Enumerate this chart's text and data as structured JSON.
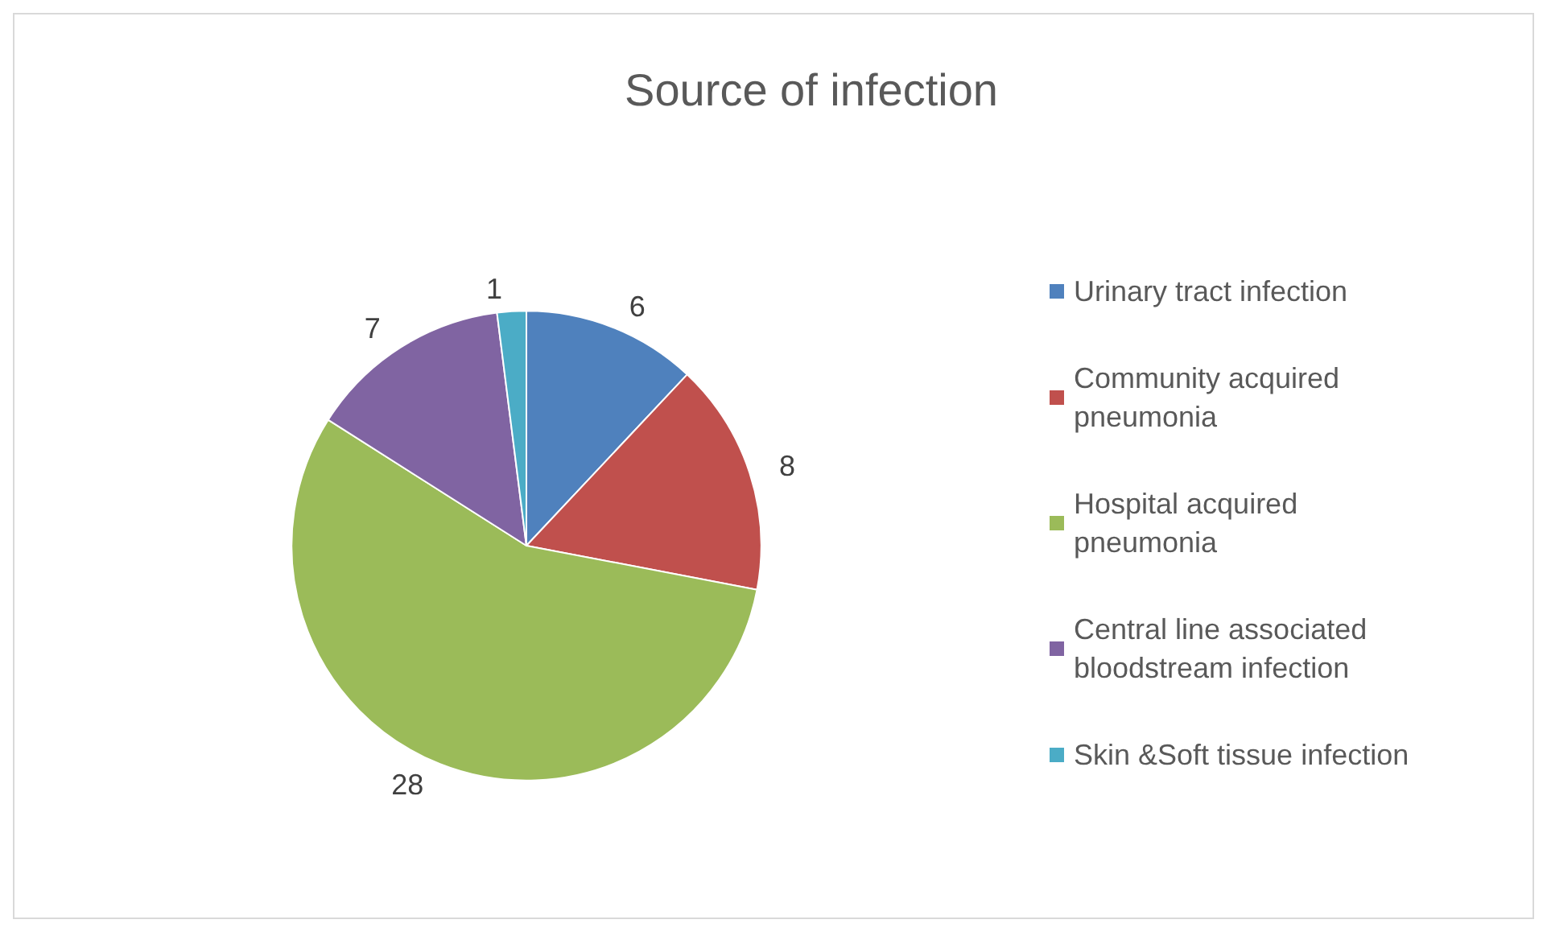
{
  "chart_data": {
    "type": "pie",
    "title": "Source of infection",
    "categories": [
      "Urinary tract infection",
      "Community acquired pneumonia",
      "Hospital acquired pneumonia",
      "Central line associated bloodstream infection",
      "Skin &Soft tissue infection"
    ],
    "values": [
      6,
      8,
      28,
      7,
      1
    ],
    "colors": [
      "#4f81bd",
      "#c0504d",
      "#9bbb59",
      "#8064a2",
      "#4bacc6"
    ],
    "data_labels": true,
    "legend": "right"
  }
}
